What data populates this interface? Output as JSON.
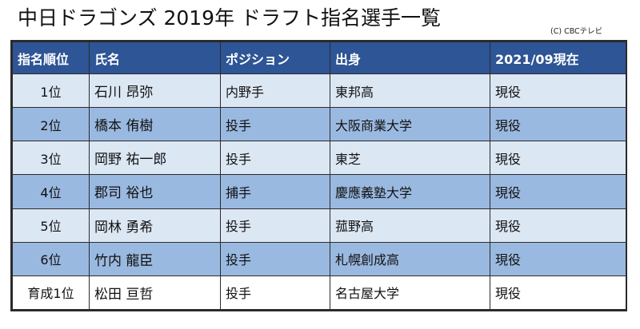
{
  "title": "中日ドラゴンズ 2019年 ドラフト指名選手一覧",
  "credit": "(C) CBCテレビ",
  "table": {
    "headers": [
      "指名順位",
      "氏名",
      "ポジション",
      "出身",
      "2021/09現在"
    ],
    "rows": [
      {
        "rank": "1位",
        "name": "石川 昂弥",
        "position": "内野手",
        "origin": "東邦高",
        "status": "現役"
      },
      {
        "rank": "2位",
        "name": "橋本 侑樹",
        "position": "投手",
        "origin": "大阪商業大学",
        "status": "現役"
      },
      {
        "rank": "3位",
        "name": "岡野 祐一郎",
        "position": "投手",
        "origin": "東芝",
        "status": "現役"
      },
      {
        "rank": "4位",
        "name": "郡司 裕也",
        "position": "捕手",
        "origin": "慶應義塾大学",
        "status": "現役"
      },
      {
        "rank": "5位",
        "name": "岡林 勇希",
        "position": "投手",
        "origin": "菰野高",
        "status": "現役"
      },
      {
        "rank": "6位",
        "name": "竹内 龍臣",
        "position": "投手",
        "origin": "札幌創成高",
        "status": "現役"
      },
      {
        "rank": "育成1位",
        "name": "松田 亘哲",
        "position": "投手",
        "origin": "名古屋大学",
        "status": "現役"
      }
    ]
  },
  "colors": {
    "header_bg": "#2e5595",
    "header_text": "#ffffff",
    "row_light": "#dce7f4",
    "row_dark": "#9ab9e0",
    "row_last": "#ffffff",
    "border": "#2b2b2b"
  }
}
